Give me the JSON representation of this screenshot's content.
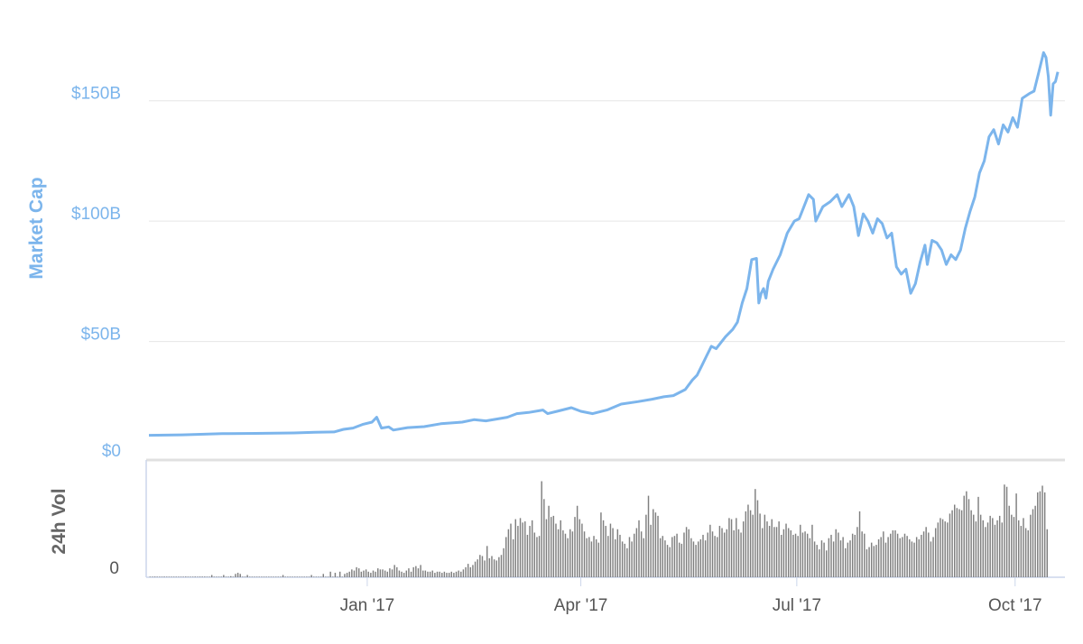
{
  "chart_data": {
    "type": "line",
    "price_axis": {
      "label": "Market Cap",
      "ticks": [
        "$0",
        "$50B",
        "$100B",
        "$150B"
      ],
      "tick_values": [
        0,
        50,
        100,
        150
      ],
      "ylim": [
        0,
        175
      ],
      "unit": "billion USD"
    },
    "volume_axis": {
      "label": "24h Vol",
      "ticks": [
        "0"
      ],
      "ylim": [
        0,
        10.5
      ],
      "unit": "billion USD"
    },
    "x_ticks": [
      "Jan '17",
      "Apr '17",
      "Jul '17",
      "Oct '17"
    ],
    "x_tick_dates": [
      "2017-01-01",
      "2017-04-01",
      "2017-07-01",
      "2017-10-01"
    ],
    "x_range": [
      "2016-10-01",
      "2017-10-22"
    ],
    "grid": true,
    "series": [
      {
        "name": "Market Cap",
        "color": "#7cb5ec",
        "points": [
          [
            "2016-10-01",
            11.0
          ],
          [
            "2016-10-15",
            11.2
          ],
          [
            "2016-11-01",
            11.7
          ],
          [
            "2016-11-15",
            11.8
          ],
          [
            "2016-12-01",
            12.0
          ],
          [
            "2016-12-10",
            12.3
          ],
          [
            "2016-12-18",
            12.4
          ],
          [
            "2016-12-22",
            13.5
          ],
          [
            "2016-12-26",
            14.0
          ],
          [
            "2016-12-30",
            15.5
          ],
          [
            "2017-01-03",
            16.5
          ],
          [
            "2017-01-05",
            18.5
          ],
          [
            "2017-01-07",
            14.0
          ],
          [
            "2017-01-10",
            14.5
          ],
          [
            "2017-01-12",
            13.2
          ],
          [
            "2017-01-18",
            14.2
          ],
          [
            "2017-01-25",
            14.6
          ],
          [
            "2017-02-01",
            15.8
          ],
          [
            "2017-02-10",
            16.5
          ],
          [
            "2017-02-15",
            17.5
          ],
          [
            "2017-02-20",
            17.0
          ],
          [
            "2017-03-01",
            18.5
          ],
          [
            "2017-03-05",
            20.0
          ],
          [
            "2017-03-10",
            20.5
          ],
          [
            "2017-03-16",
            21.5
          ],
          [
            "2017-03-18",
            20.0
          ],
          [
            "2017-03-22",
            21.0
          ],
          [
            "2017-03-28",
            22.5
          ],
          [
            "2017-04-01",
            21.0
          ],
          [
            "2017-04-06",
            20.0
          ],
          [
            "2017-04-12",
            21.5
          ],
          [
            "2017-04-18",
            24.0
          ],
          [
            "2017-04-25",
            25.0
          ],
          [
            "2017-05-01",
            26.0
          ],
          [
            "2017-05-06",
            27.0
          ],
          [
            "2017-05-10",
            27.5
          ],
          [
            "2017-05-15",
            30.0
          ],
          [
            "2017-05-18",
            34.0
          ],
          [
            "2017-05-20",
            36.0
          ],
          [
            "2017-05-22",
            40.0
          ],
          [
            "2017-05-24",
            44.0
          ],
          [
            "2017-05-26",
            48.0
          ],
          [
            "2017-05-28",
            47.0
          ],
          [
            "2017-06-01",
            52.0
          ],
          [
            "2017-06-04",
            55.0
          ],
          [
            "2017-06-06",
            58.0
          ],
          [
            "2017-06-08",
            66.0
          ],
          [
            "2017-06-10",
            72.0
          ],
          [
            "2017-06-12",
            84.0
          ],
          [
            "2017-06-14",
            84.5
          ],
          [
            "2017-06-15",
            66.0
          ],
          [
            "2017-06-16",
            70.0
          ],
          [
            "2017-06-17",
            72.0
          ],
          [
            "2017-06-18",
            68.0
          ],
          [
            "2017-06-19",
            75.0
          ],
          [
            "2017-06-21",
            80.0
          ],
          [
            "2017-06-24",
            86.0
          ],
          [
            "2017-06-27",
            95.0
          ],
          [
            "2017-06-30",
            100.0
          ],
          [
            "2017-07-02",
            101.0
          ],
          [
            "2017-07-04",
            106.0
          ],
          [
            "2017-07-06",
            111.0
          ],
          [
            "2017-07-08",
            109.0
          ],
          [
            "2017-07-09",
            100.0
          ],
          [
            "2017-07-12",
            106.0
          ],
          [
            "2017-07-15",
            108.0
          ],
          [
            "2017-07-18",
            111.0
          ],
          [
            "2017-07-20",
            106.0
          ],
          [
            "2017-07-23",
            111.0
          ],
          [
            "2017-07-25",
            106.0
          ],
          [
            "2017-07-27",
            94.0
          ],
          [
            "2017-07-29",
            103.0
          ],
          [
            "2017-07-31",
            100.0
          ],
          [
            "2017-08-02",
            95.0
          ],
          [
            "2017-08-04",
            101.0
          ],
          [
            "2017-08-06",
            99.0
          ],
          [
            "2017-08-08",
            93.0
          ],
          [
            "2017-08-10",
            95.0
          ],
          [
            "2017-08-12",
            81.0
          ],
          [
            "2017-08-14",
            78.0
          ],
          [
            "2017-08-16",
            80.0
          ],
          [
            "2017-08-18",
            70.0
          ],
          [
            "2017-08-20",
            74.0
          ],
          [
            "2017-08-22",
            83.0
          ],
          [
            "2017-08-24",
            90.0
          ],
          [
            "2017-08-25",
            82.0
          ],
          [
            "2017-08-27",
            92.0
          ],
          [
            "2017-08-29",
            91.0
          ],
          [
            "2017-08-31",
            88.0
          ],
          [
            "2017-09-02",
            82.0
          ],
          [
            "2017-09-04",
            86.0
          ],
          [
            "2017-09-06",
            84.0
          ],
          [
            "2017-09-08",
            88.0
          ],
          [
            "2017-09-10",
            97.0
          ],
          [
            "2017-09-12",
            104.0
          ],
          [
            "2017-09-14",
            110.0
          ],
          [
            "2017-09-16",
            120.0
          ],
          [
            "2017-09-18",
            125.0
          ],
          [
            "2017-09-20",
            135.0
          ],
          [
            "2017-09-22",
            138.0
          ],
          [
            "2017-09-24",
            132.0
          ],
          [
            "2017-09-26",
            140.0
          ],
          [
            "2017-09-28",
            137.0
          ],
          [
            "2017-09-30",
            143.0
          ],
          [
            "2017-10-02",
            139.0
          ],
          [
            "2017-10-04",
            151.0
          ],
          [
            "2017-10-07",
            153.0
          ],
          [
            "2017-10-09",
            154.0
          ],
          [
            "2017-10-11",
            162.0
          ],
          [
            "2017-10-13",
            170.0
          ],
          [
            "2017-10-14",
            168.0
          ],
          [
            "2017-10-15",
            160.0
          ],
          [
            "2017-10-16",
            144.0
          ],
          [
            "2017-10-17",
            157.0
          ],
          [
            "2017-10-18",
            158.0
          ],
          [
            "2017-10-19",
            162.0
          ]
        ]
      },
      {
        "name": "24h Vol",
        "color": "#7f7f7f",
        "values_billion": [
          0.05,
          0.05,
          0.06,
          0.05,
          0.05,
          0.05,
          0.06,
          0.05,
          0.05,
          0.05,
          0.05,
          0.05,
          0.05,
          0.05,
          0.05,
          0.06,
          0.05,
          0.05,
          0.05,
          0.06,
          0.05,
          0.06,
          0.06,
          0.06,
          0.05,
          0.05,
          0.2,
          0.05,
          0.05,
          0.05,
          0.05,
          0.2,
          0.05,
          0.05,
          0.1,
          0.05,
          0.3,
          0.4,
          0.3,
          0.05,
          0.05,
          0.2,
          0.05,
          0.05,
          0.05,
          0.05,
          0.05,
          0.05,
          0.05,
          0.05,
          0.05,
          0.05,
          0.05,
          0.05,
          0.05,
          0.05,
          0.2,
          0.05,
          0.05,
          0.05,
          0.05,
          0.05,
          0.05,
          0.05,
          0.05,
          0.05,
          0.05,
          0.05,
          0.2,
          0.05,
          0.05,
          0.05,
          0.05,
          0.3,
          0.05,
          0.05,
          0.5,
          0.05,
          0.4,
          0.05,
          0.5,
          0.05,
          0.3,
          0.4,
          0.5,
          0.7,
          0.6,
          0.9,
          0.8,
          0.5,
          0.6,
          0.7,
          0.5,
          0.4,
          0.6,
          0.5,
          0.8,
          0.7,
          0.7,
          0.6,
          0.5,
          0.8,
          0.7,
          1.1,
          0.9,
          0.6,
          0.5,
          0.4,
          0.6,
          0.8,
          0.5,
          0.9,
          1.0,
          0.8,
          1.1,
          0.6,
          0.6,
          0.5,
          0.5,
          0.6,
          0.4,
          0.5,
          0.5,
          0.4,
          0.5,
          0.4,
          0.4,
          0.5,
          0.4,
          0.5,
          0.6,
          0.5,
          0.7,
          0.9,
          1.2,
          0.9,
          1.1,
          1.4,
          1.6,
          2.0,
          1.9,
          1.5,
          2.8,
          1.7,
          1.9,
          1.6,
          1.5,
          1.8,
          2.0,
          2.6,
          3.6,
          4.3,
          4.8,
          3.4,
          5.2,
          4.6,
          5.3,
          4.9,
          5.0,
          3.8,
          4.6,
          5.1,
          4.0,
          3.6,
          3.7,
          8.6,
          7.0,
          5.2,
          6.4,
          5.4,
          5.5,
          4.8,
          4.3,
          5.1,
          4.2,
          3.9,
          3.5,
          4.3,
          4.1,
          5.4,
          6.4,
          5.2,
          4.8,
          4.1,
          3.5,
          3.6,
          3.2,
          3.7,
          3.4,
          3.1,
          5.8,
          5.1,
          4.6,
          3.7,
          4.8,
          4.4,
          3.4,
          4.3,
          3.8,
          3.2,
          3.0,
          2.6,
          3.6,
          3.2,
          3.9,
          4.4,
          5.1,
          4.1,
          3.5,
          5.6,
          7.3,
          4.7,
          6.1,
          5.8,
          5.5,
          3.5,
          3.7,
          3.3,
          2.9,
          2.7,
          3.6,
          3.7,
          3.9,
          3.1,
          3.0,
          4.0,
          4.5,
          4.3,
          3.5,
          3.2,
          2.9,
          3.2,
          3.4,
          3.8,
          3.3,
          4.0,
          4.7,
          4.1,
          3.7,
          3.6,
          4.6,
          4.4,
          4.0,
          4.3,
          5.3,
          5.2,
          4.2,
          5.3,
          4.3,
          4.0,
          5.0,
          5.9,
          6.5,
          6.0,
          5.6,
          7.9,
          6.9,
          5.7,
          4.4,
          5.6,
          5.0,
          4.6,
          5.2,
          4.5,
          4.5,
          5.0,
          3.8,
          4.3,
          4.8,
          4.4,
          4.2,
          3.8,
          3.9,
          3.7,
          4.7,
          4.0,
          4.1,
          3.9,
          3.5,
          4.7,
          3.2,
          2.9,
          2.5,
          3.3,
          3.1,
          2.4,
          3.5,
          3.8,
          3.2,
          4.3,
          4.0,
          3.3,
          3.6,
          2.6,
          3.1,
          3.3,
          3.9,
          3.8,
          4.5,
          5.9,
          4.1,
          3.9,
          2.5,
          2.7,
          3.1,
          2.8,
          2.9,
          3.4,
          3.6,
          4.1,
          3.1,
          3.6,
          3.9,
          4.2,
          4.2,
          3.9,
          3.5,
          3.6,
          3.9,
          3.7,
          3.4,
          3.2,
          3.1,
          3.6,
          3.4,
          3.8,
          4.1,
          4.5,
          4.0,
          3.2,
          3.6,
          4.4,
          4.9,
          5.3,
          5.2,
          5.0,
          4.9,
          5.7,
          6.0,
          6.5,
          6.2,
          6.1,
          6.0,
          7.3,
          7.7,
          7.0,
          6.0,
          5.6,
          5.0,
          7.2,
          5.6,
          5.1,
          4.5,
          4.9,
          5.5,
          5.3,
          4.7,
          5.1,
          5.5,
          4.9,
          8.3,
          8.1,
          6.4,
          5.6,
          5.4,
          7.5,
          5.1,
          4.6,
          5.3,
          4.4,
          4.2,
          5.6,
          6.1,
          6.4,
          7.6,
          7.7,
          8.2,
          7.6,
          4.3
        ]
      }
    ]
  }
}
